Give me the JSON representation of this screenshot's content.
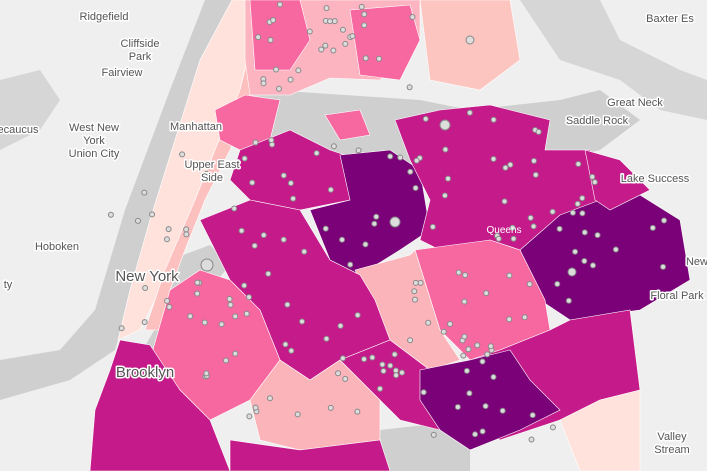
{
  "places": [
    {
      "lines": [
        "Ridgefield"
      ]
    },
    {
      "lines": [
        "Cliffside",
        "Park"
      ]
    },
    {
      "lines": [
        "Fairview"
      ]
    },
    {
      "lines": [
        "ecaucus"
      ]
    },
    {
      "lines": [
        "West New",
        "York",
        "Union City"
      ]
    },
    {
      "lines": [
        "Manhattan"
      ]
    },
    {
      "lines": [
        "Upper East",
        "Side"
      ]
    },
    {
      "lines": [
        "Hoboken"
      ]
    },
    {
      "lines": [
        "ty"
      ]
    },
    {
      "lines": [
        "New York"
      ]
    },
    {
      "lines": [
        "Brooklyn"
      ]
    },
    {
      "lines": [
        "Queens"
      ]
    },
    {
      "lines": [
        "Great Neck"
      ]
    },
    {
      "lines": [
        "Saddle Rock"
      ]
    },
    {
      "lines": [
        "Lake Success"
      ]
    },
    {
      "lines": [
        "Floral Park"
      ]
    },
    {
      "lines": [
        "Valley",
        "Stream"
      ]
    },
    {
      "lines": [
        "Baxter Es"
      ]
    },
    {
      "lines": [
        "New"
      ]
    }
  ]
}
